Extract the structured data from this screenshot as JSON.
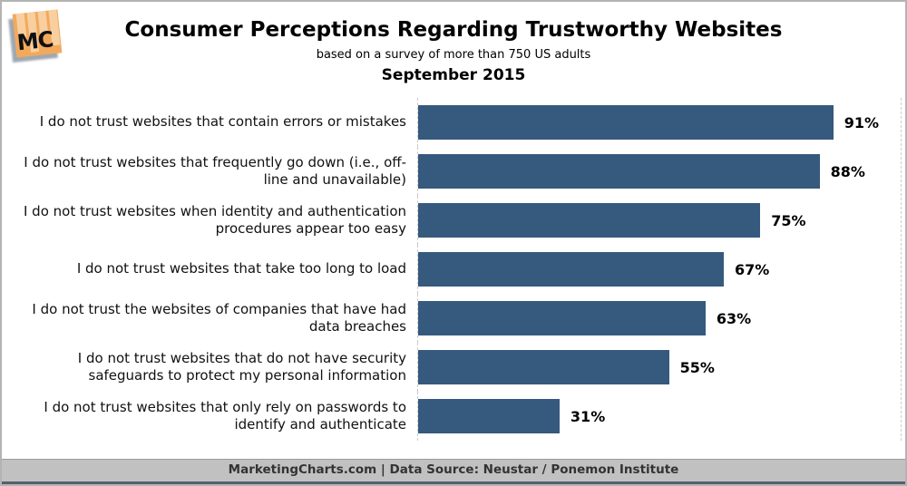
{
  "header": {
    "title": "Consumer Perceptions Regarding Trustworthy Websites",
    "subtitle": "based on a survey of more than 750 US adults",
    "date": "September 2015"
  },
  "logo": {
    "text": "MC"
  },
  "chart_data": {
    "type": "bar",
    "orientation": "horizontal",
    "title": "Consumer Perceptions Regarding Trustworthy Websites",
    "subtitle": "based on a survey of more than 750 US adults",
    "date_label": "September 2015",
    "categories": [
      "I do not trust websites that contain errors or mistakes",
      "I do not trust websites that frequently go down (i.e., off-line and unavailable)",
      "I do not trust websites when identity and authentication procedures appear too easy",
      "I do not trust websites that take too long to load",
      "I do not trust the websites of companies that have had data breaches",
      "I do not trust websites that do not have security safeguards to protect my personal information",
      "I do not trust websites that only rely on passwords to identify and authenticate"
    ],
    "values": [
      91,
      88,
      75,
      67,
      63,
      55,
      31
    ],
    "value_labels": [
      "91%",
      "88%",
      "75%",
      "67%",
      "63%",
      "55%",
      "31%"
    ],
    "unit": "%",
    "xlim": [
      0,
      100
    ],
    "bar_color": "#36597E",
    "grid": "dashed vertical baseline and right plot border",
    "legend": "none"
  },
  "footer": {
    "text": "MarketingCharts.com | Data Source: Neustar / Ponemon Institute"
  }
}
